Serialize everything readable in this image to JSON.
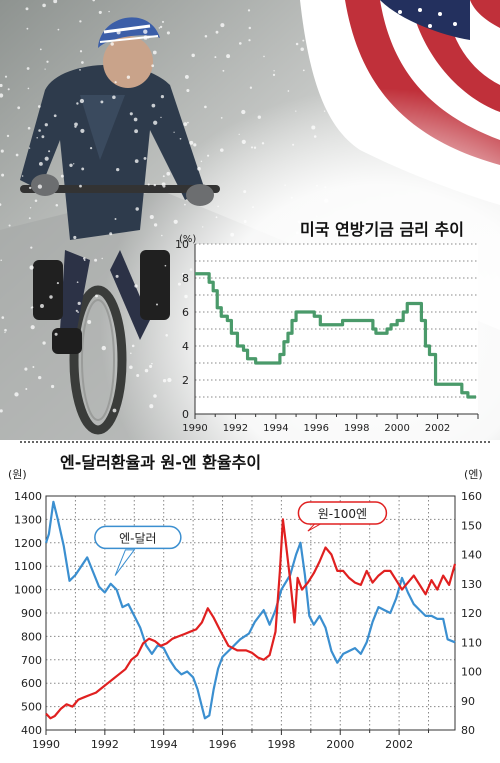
{
  "colors": {
    "fed_line": "#4a9a6a",
    "yen_dollar": "#3b8fd0",
    "won_100yen": "#e02020",
    "grid": "#888888"
  },
  "photo": {
    "description_icons": [
      "cyclist-in-snow",
      "us-flag"
    ]
  },
  "chart_data": [
    {
      "type": "line",
      "title": "미국 연방기금 금리 추이",
      "ylabel": "(%)",
      "xlabel": "",
      "xlim": [
        1990,
        2004
      ],
      "ylim": [
        0,
        10
      ],
      "x_ticks": [
        1990,
        1992,
        1994,
        1996,
        1998,
        2000,
        2002
      ],
      "y_ticks": [
        0,
        2,
        4,
        6,
        8,
        10
      ],
      "grid": true,
      "series": [
        {
          "x": [
            1990.0,
            1990.5,
            1990.7,
            1990.9,
            1991.1,
            1991.3,
            1991.6,
            1991.8,
            1992.1,
            1992.4,
            1992.6,
            1993.0,
            1993.5,
            1994.0,
            1994.2,
            1994.4,
            1994.6,
            1994.8,
            1995.0,
            1995.5,
            1995.9,
            1996.2,
            1996.6,
            1997.0,
            1997.3,
            1997.7,
            1998.0,
            1998.5,
            1998.8,
            1998.95,
            1999.2,
            1999.5,
            1999.7,
            2000.0,
            2000.3,
            2000.5,
            2000.8,
            2001.0,
            2001.2,
            2001.4,
            2001.6,
            2001.9,
            2002.3,
            2002.9,
            2003.2,
            2003.5,
            2003.9
          ],
          "values": [
            8.25,
            8.25,
            7.75,
            7.25,
            6.25,
            5.75,
            5.5,
            4.75,
            4.0,
            3.75,
            3.25,
            3.0,
            3.0,
            3.0,
            3.5,
            4.25,
            4.75,
            5.5,
            6.0,
            6.0,
            5.75,
            5.25,
            5.25,
            5.25,
            5.5,
            5.5,
            5.5,
            5.5,
            5.0,
            4.75,
            4.75,
            5.0,
            5.25,
            5.5,
            6.0,
            6.5,
            6.5,
            6.5,
            5.5,
            4.0,
            3.5,
            1.75,
            1.75,
            1.75,
            1.25,
            1.0,
            1.0
          ]
        }
      ]
    },
    {
      "type": "line",
      "title": "엔-달러환율과 원-엔 환율추이",
      "xlim": [
        1990,
        2003.9
      ],
      "x_ticks": [
        1990,
        1992,
        1994,
        1996,
        1998,
        2000,
        2002
      ],
      "y_left": {
        "label": "(원)",
        "range": [
          400,
          1400
        ],
        "ticks": [
          400,
          500,
          600,
          700,
          800,
          900,
          1000,
          1100,
          1200,
          1300,
          1400
        ]
      },
      "y_right": {
        "label": "(엔)",
        "range": [
          80,
          160
        ],
        "ticks": [
          80,
          90,
          100,
          110,
          120,
          130,
          140,
          150,
          160
        ]
      },
      "grid": true,
      "series": [
        {
          "name": "엔-달러",
          "axis": "right",
          "x": [
            1990.0,
            1990.1,
            1990.25,
            1990.4,
            1990.6,
            1990.8,
            1991.0,
            1991.2,
            1991.4,
            1991.6,
            1991.8,
            1992.0,
            1992.2,
            1992.4,
            1992.6,
            1992.8,
            1993.0,
            1993.2,
            1993.4,
            1993.6,
            1993.8,
            1994.0,
            1994.2,
            1994.4,
            1994.6,
            1994.8,
            1995.0,
            1995.15,
            1995.3,
            1995.4,
            1995.55,
            1995.7,
            1995.85,
            1996.0,
            1996.3,
            1996.6,
            1996.9,
            1997.1,
            1997.4,
            1997.6,
            1997.8,
            1998.0,
            1998.3,
            1998.5,
            1998.65,
            1998.8,
            1998.95,
            1999.1,
            1999.3,
            1999.5,
            1999.7,
            1999.9,
            2000.1,
            2000.3,
            2000.5,
            2000.7,
            2000.9,
            2001.1,
            2001.3,
            2001.5,
            2001.7,
            2001.9,
            2002.1,
            2002.3,
            2002.5,
            2002.7,
            2002.9,
            2003.1,
            2003.3,
            2003.5,
            2003.65,
            2003.9
          ],
          "values": [
            144,
            147,
            158,
            152,
            143,
            131,
            133,
            136,
            139,
            134,
            129,
            127,
            130,
            128,
            122,
            123,
            119,
            115,
            109,
            106,
            109,
            108,
            104,
            101,
            99,
            100,
            98,
            94,
            88,
            84,
            85,
            94,
            101,
            105,
            108,
            111,
            113,
            117,
            121,
            116,
            121,
            128,
            133,
            140,
            144,
            133,
            119,
            116,
            119,
            115,
            107,
            103,
            106,
            107,
            108,
            106,
            110,
            117,
            122,
            121,
            120,
            125,
            132,
            127,
            123,
            121,
            119,
            119,
            118,
            118,
            111,
            110
          ]
        },
        {
          "name": "원-100엔",
          "axis": "left",
          "x": [
            1990.0,
            1990.15,
            1990.3,
            1990.5,
            1990.7,
            1990.9,
            1991.1,
            1991.3,
            1991.5,
            1991.7,
            1991.9,
            1992.1,
            1992.3,
            1992.5,
            1992.7,
            1992.9,
            1993.1,
            1993.3,
            1993.5,
            1993.7,
            1993.9,
            1994.1,
            1994.3,
            1994.5,
            1994.7,
            1994.9,
            1995.1,
            1995.3,
            1995.5,
            1995.7,
            1995.9,
            1996.2,
            1996.5,
            1996.8,
            1997.0,
            1997.2,
            1997.4,
            1997.6,
            1997.8,
            1997.95,
            1998.05,
            1998.15,
            1998.3,
            1998.45,
            1998.55,
            1998.7,
            1998.9,
            1999.1,
            1999.3,
            1999.5,
            1999.7,
            1999.9,
            2000.1,
            2000.3,
            2000.5,
            2000.7,
            2000.9,
            2001.1,
            2001.3,
            2001.5,
            2001.7,
            2001.9,
            2002.1,
            2002.3,
            2002.5,
            2002.7,
            2002.9,
            2003.1,
            2003.3,
            2003.5,
            2003.7,
            2003.9
          ],
          "values": [
            470,
            450,
            460,
            490,
            510,
            500,
            530,
            540,
            550,
            560,
            580,
            600,
            620,
            640,
            660,
            700,
            720,
            770,
            790,
            780,
            760,
            770,
            790,
            800,
            810,
            820,
            830,
            860,
            920,
            880,
            830,
            760,
            740,
            740,
            730,
            710,
            700,
            720,
            820,
            1080,
            1300,
            1200,
            1040,
            860,
            1050,
            1000,
            1030,
            1070,
            1120,
            1180,
            1150,
            1080,
            1080,
            1050,
            1030,
            1020,
            1080,
            1030,
            1060,
            1080,
            1080,
            1040,
            1000,
            1030,
            1060,
            1020,
            980,
            1040,
            1000,
            1060,
            1020,
            1110
          ]
        }
      ],
      "annotations": [
        "엔-달러",
        "원-100엔"
      ]
    }
  ]
}
